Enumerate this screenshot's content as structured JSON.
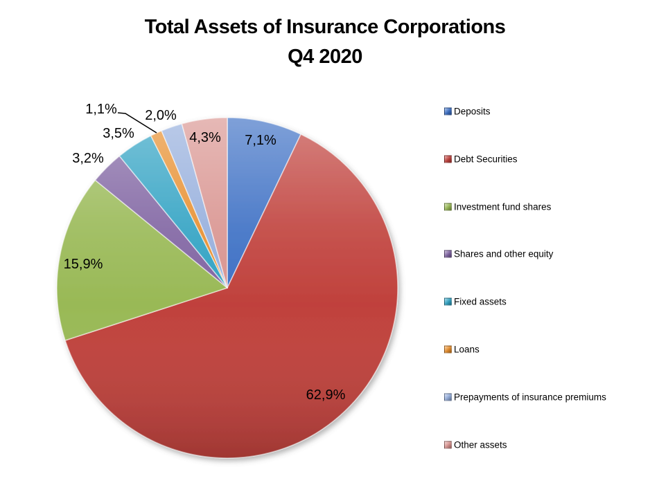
{
  "title": {
    "line1": "Total Assets of Insurance Corporations",
    "line2": "Q4 2020"
  },
  "chart_data": {
    "type": "pie",
    "title": "Total Assets of Insurance Corporations Q4 2020",
    "unit": "%",
    "decimal_separator": ",",
    "start_angle_deg": 0,
    "direction": "clockwise",
    "legend_position": "right",
    "grid": false,
    "total": 100.0,
    "slices": [
      {
        "label": "Deposits",
        "value": 7.1,
        "display": "7,1%",
        "color": "#3C6FC4",
        "label_placement": "inside"
      },
      {
        "label": "Debt Securities",
        "value": 62.9,
        "display": "62,9%",
        "color": "#C0413C",
        "label_placement": "inside"
      },
      {
        "label": "Investment fund shares",
        "value": 15.9,
        "display": "15,9%",
        "color": "#99B956",
        "label_placement": "inside"
      },
      {
        "label": "Shares and other equity",
        "value": 3.2,
        "display": "3,2%",
        "color": "#8064A2",
        "label_placement": "outside"
      },
      {
        "label": "Fixed assets",
        "value": 3.5,
        "display": "3,5%",
        "color": "#31A2C3",
        "label_placement": "outside"
      },
      {
        "label": "Loans",
        "value": 1.1,
        "display": "1,1%",
        "color": "#E78E2D",
        "label_placement": "outside_leader"
      },
      {
        "label": "Prepayments of insurance premiums",
        "value": 2.0,
        "display": "2,0%",
        "color": "#95AEDC",
        "label_placement": "outside"
      },
      {
        "label": "Other assets",
        "value": 4.3,
        "display": "4,3%",
        "color": "#D99490",
        "label_placement": "inside"
      }
    ]
  }
}
